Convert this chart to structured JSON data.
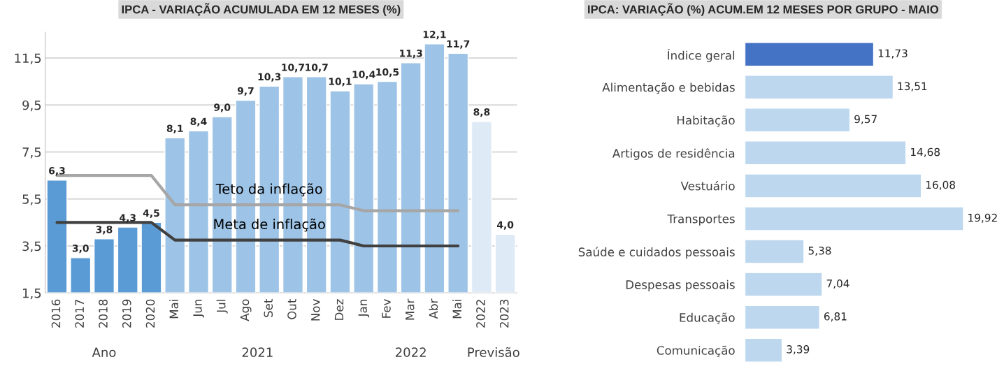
{
  "chart_data": [
    {
      "type": "bar",
      "title": "IPCA - VARIAÇÃO ACUMULADA EM 12 MESES (%)",
      "categories": [
        "2016",
        "2017",
        "2018",
        "2019",
        "2020",
        "Mai",
        "Jun",
        "Jul",
        "Ago",
        "Set",
        "Out",
        "Nov",
        "Dez",
        "Jan",
        "Fev",
        "Mar",
        "Abr",
        "Mai",
        "2022",
        "2023"
      ],
      "series": [
        {
          "type": "bar",
          "values": [
            6.3,
            3.0,
            3.8,
            4.3,
            4.5,
            8.1,
            8.4,
            9.0,
            9.7,
            10.3,
            10.7,
            10.7,
            10.1,
            10.4,
            10.5,
            11.3,
            12.1,
            11.7,
            8.8,
            4.0
          ],
          "colors": [
            "#5b9bd5",
            "#5b9bd5",
            "#5b9bd5",
            "#5b9bd5",
            "#5b9bd5",
            "#9dc3e6",
            "#9dc3e6",
            "#9dc3e6",
            "#9dc3e6",
            "#9dc3e6",
            "#9dc3e6",
            "#9dc3e6",
            "#9dc3e6",
            "#9dc3e6",
            "#9dc3e6",
            "#9dc3e6",
            "#9dc3e6",
            "#9dc3e6",
            "#deebf7",
            "#deebf7"
          ],
          "value_labels": [
            "6,3",
            "3,0",
            "3,8",
            "4,3",
            "4,5",
            "8,1",
            "8,4",
            "9,0",
            "9,7",
            "10,3",
            "10,7",
            "10,7",
            "10,1",
            "10,4",
            "10,5",
            "11,3",
            "12,1",
            "11,7",
            "8,8",
            "4,0"
          ]
        },
        {
          "type": "line",
          "name": "Teto da inflação",
          "color": "#a6a6a6",
          "values": [
            6.5,
            6.5,
            6.5,
            6.5,
            6.5,
            5.25,
            5.25,
            5.25,
            5.25,
            5.25,
            5.25,
            5.25,
            5.25,
            5.0,
            5.0,
            5.0,
            5.0,
            5.0,
            null,
            null
          ]
        },
        {
          "type": "line",
          "name": "Meta de inflação",
          "color": "#404040",
          "values": [
            4.5,
            4.5,
            4.5,
            4.5,
            4.5,
            3.75,
            3.75,
            3.75,
            3.75,
            3.75,
            3.75,
            3.75,
            3.75,
            3.5,
            3.5,
            3.5,
            3.5,
            3.5,
            null,
            null
          ]
        }
      ],
      "ylim": [
        1.5,
        12.6
      ],
      "yticks": [
        {
          "value": 1.5,
          "label": "1,5"
        },
        {
          "value": 3.5,
          "label": "3,5"
        },
        {
          "value": 5.5,
          "label": "5,5"
        },
        {
          "value": 7.5,
          "label": "7,5"
        },
        {
          "value": 9.5,
          "label": "9,5"
        },
        {
          "value": 11.5,
          "label": "11,5"
        }
      ],
      "grid": "y",
      "legend": false,
      "annotations": [
        "Ano",
        "2021",
        "2022",
        "Previsão"
      ]
    },
    {
      "type": "bar",
      "orientation": "horizontal",
      "title": "IPCA: VARIAÇÃO (%) ACUM.EM 12 MESES POR GRUPO - MAIO",
      "categories": [
        "Índice geral",
        "Alimentação e bebidas",
        "Habitação",
        "Artigos de residência",
        "Vestuário",
        "Transportes",
        "Saúde e cuidados pessoais",
        "Despesas pessoais",
        "Educação",
        "Comunicação"
      ],
      "values": [
        11.73,
        13.51,
        9.57,
        14.68,
        16.08,
        19.92,
        5.38,
        7.04,
        6.81,
        3.39
      ],
      "colors": [
        "#4472c4",
        "#bdd7ee",
        "#bdd7ee",
        "#bdd7ee",
        "#bdd7ee",
        "#bdd7ee",
        "#bdd7ee",
        "#bdd7ee",
        "#bdd7ee",
        "#bdd7ee"
      ],
      "value_labels": [
        "11,73",
        "13,51",
        "9,57",
        "14,68",
        "16,08",
        "19,92",
        "5,38",
        "7,04",
        "6,81",
        "3,39"
      ],
      "tick_labels": "y",
      "grid": false,
      "legend": false
    }
  ]
}
